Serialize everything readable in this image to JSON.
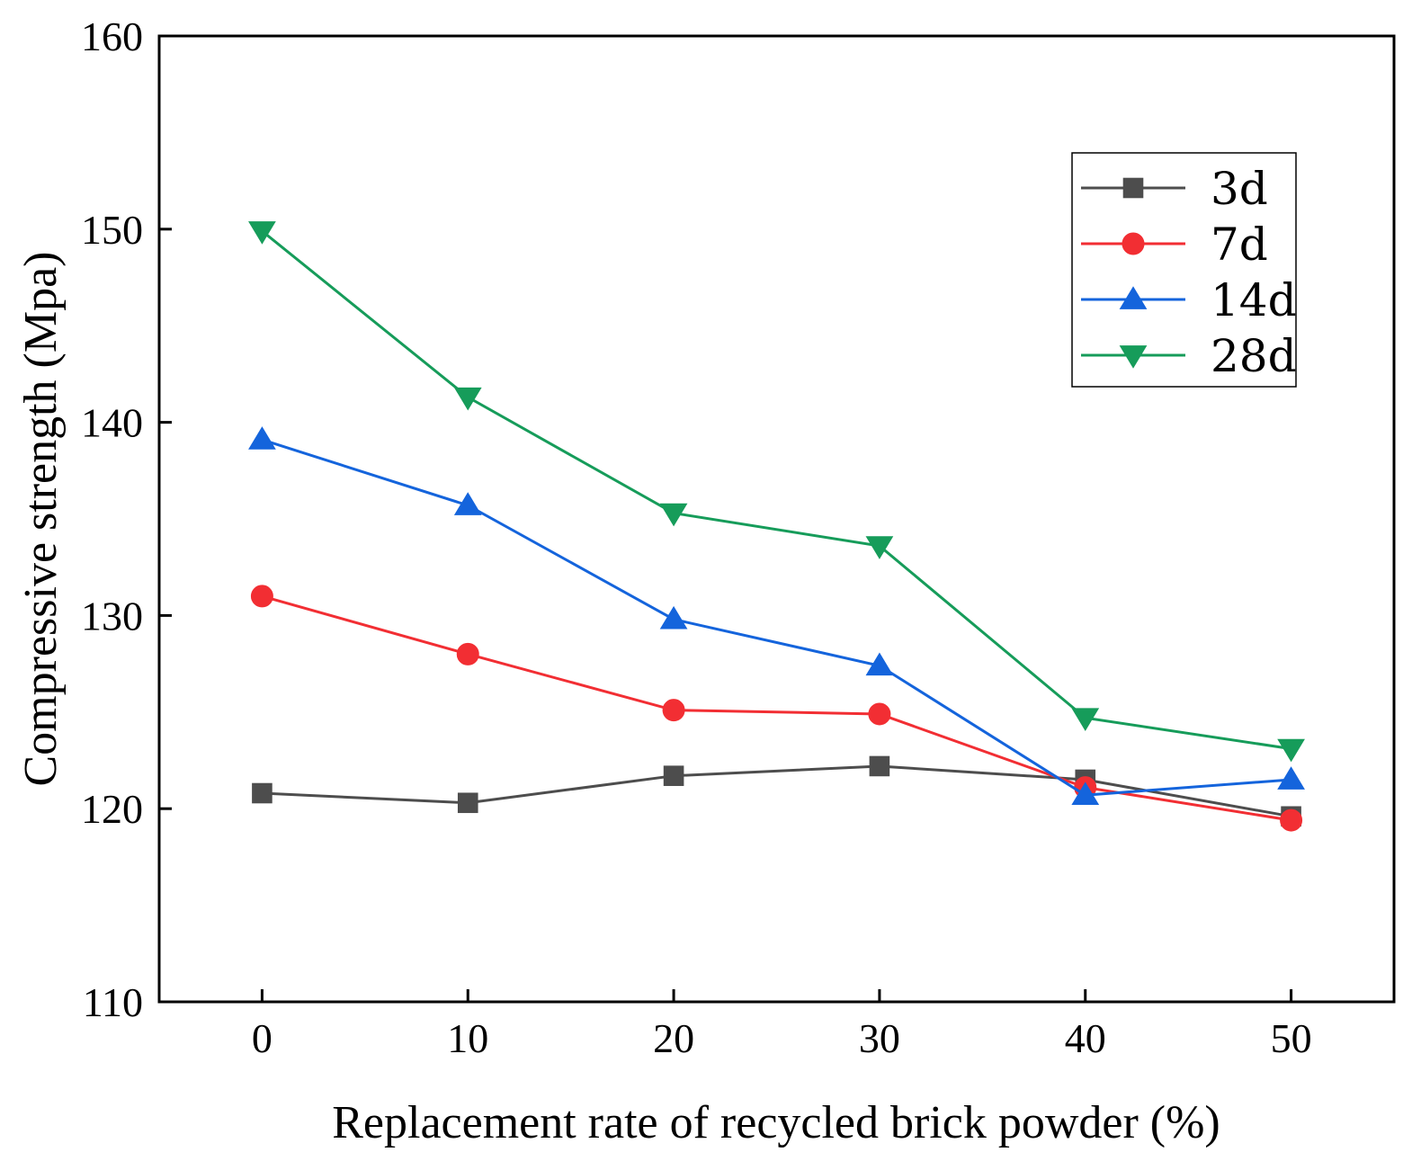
{
  "chart_data": {
    "type": "line",
    "title": "",
    "xlabel": "Replacement rate of recycled brick powder (%)",
    "ylabel": "Compressive strength (Mpa)",
    "x": [
      0,
      10,
      20,
      30,
      40,
      50
    ],
    "x_tick_labels": [
      "0",
      "10",
      "20",
      "30",
      "40",
      "50"
    ],
    "xlim": [
      -5,
      55
    ],
    "ylim": [
      110,
      160
    ],
    "y_ticks": [
      110,
      120,
      130,
      140,
      150,
      160
    ],
    "y_tick_labels": [
      "110",
      "120",
      "130",
      "140",
      "150",
      "160"
    ],
    "grid": false,
    "legend_position": "top-right",
    "series": [
      {
        "name": "3d",
        "color": "#4d4d4d",
        "marker": "square",
        "values": [
          120.8,
          120.3,
          121.7,
          122.2,
          121.5,
          119.6
        ]
      },
      {
        "name": "7d",
        "color": "#f22e33",
        "marker": "circle",
        "values": [
          131.0,
          128.0,
          125.1,
          124.9,
          121.1,
          119.4
        ]
      },
      {
        "name": "14d",
        "color": "#1464dc",
        "marker": "triangle-up",
        "values": [
          139.1,
          135.7,
          129.8,
          127.4,
          120.7,
          121.5
        ]
      },
      {
        "name": "28d",
        "color": "#169c5a",
        "marker": "triangle-down",
        "values": [
          149.9,
          141.3,
          135.3,
          133.6,
          124.7,
          123.1
        ]
      }
    ]
  }
}
